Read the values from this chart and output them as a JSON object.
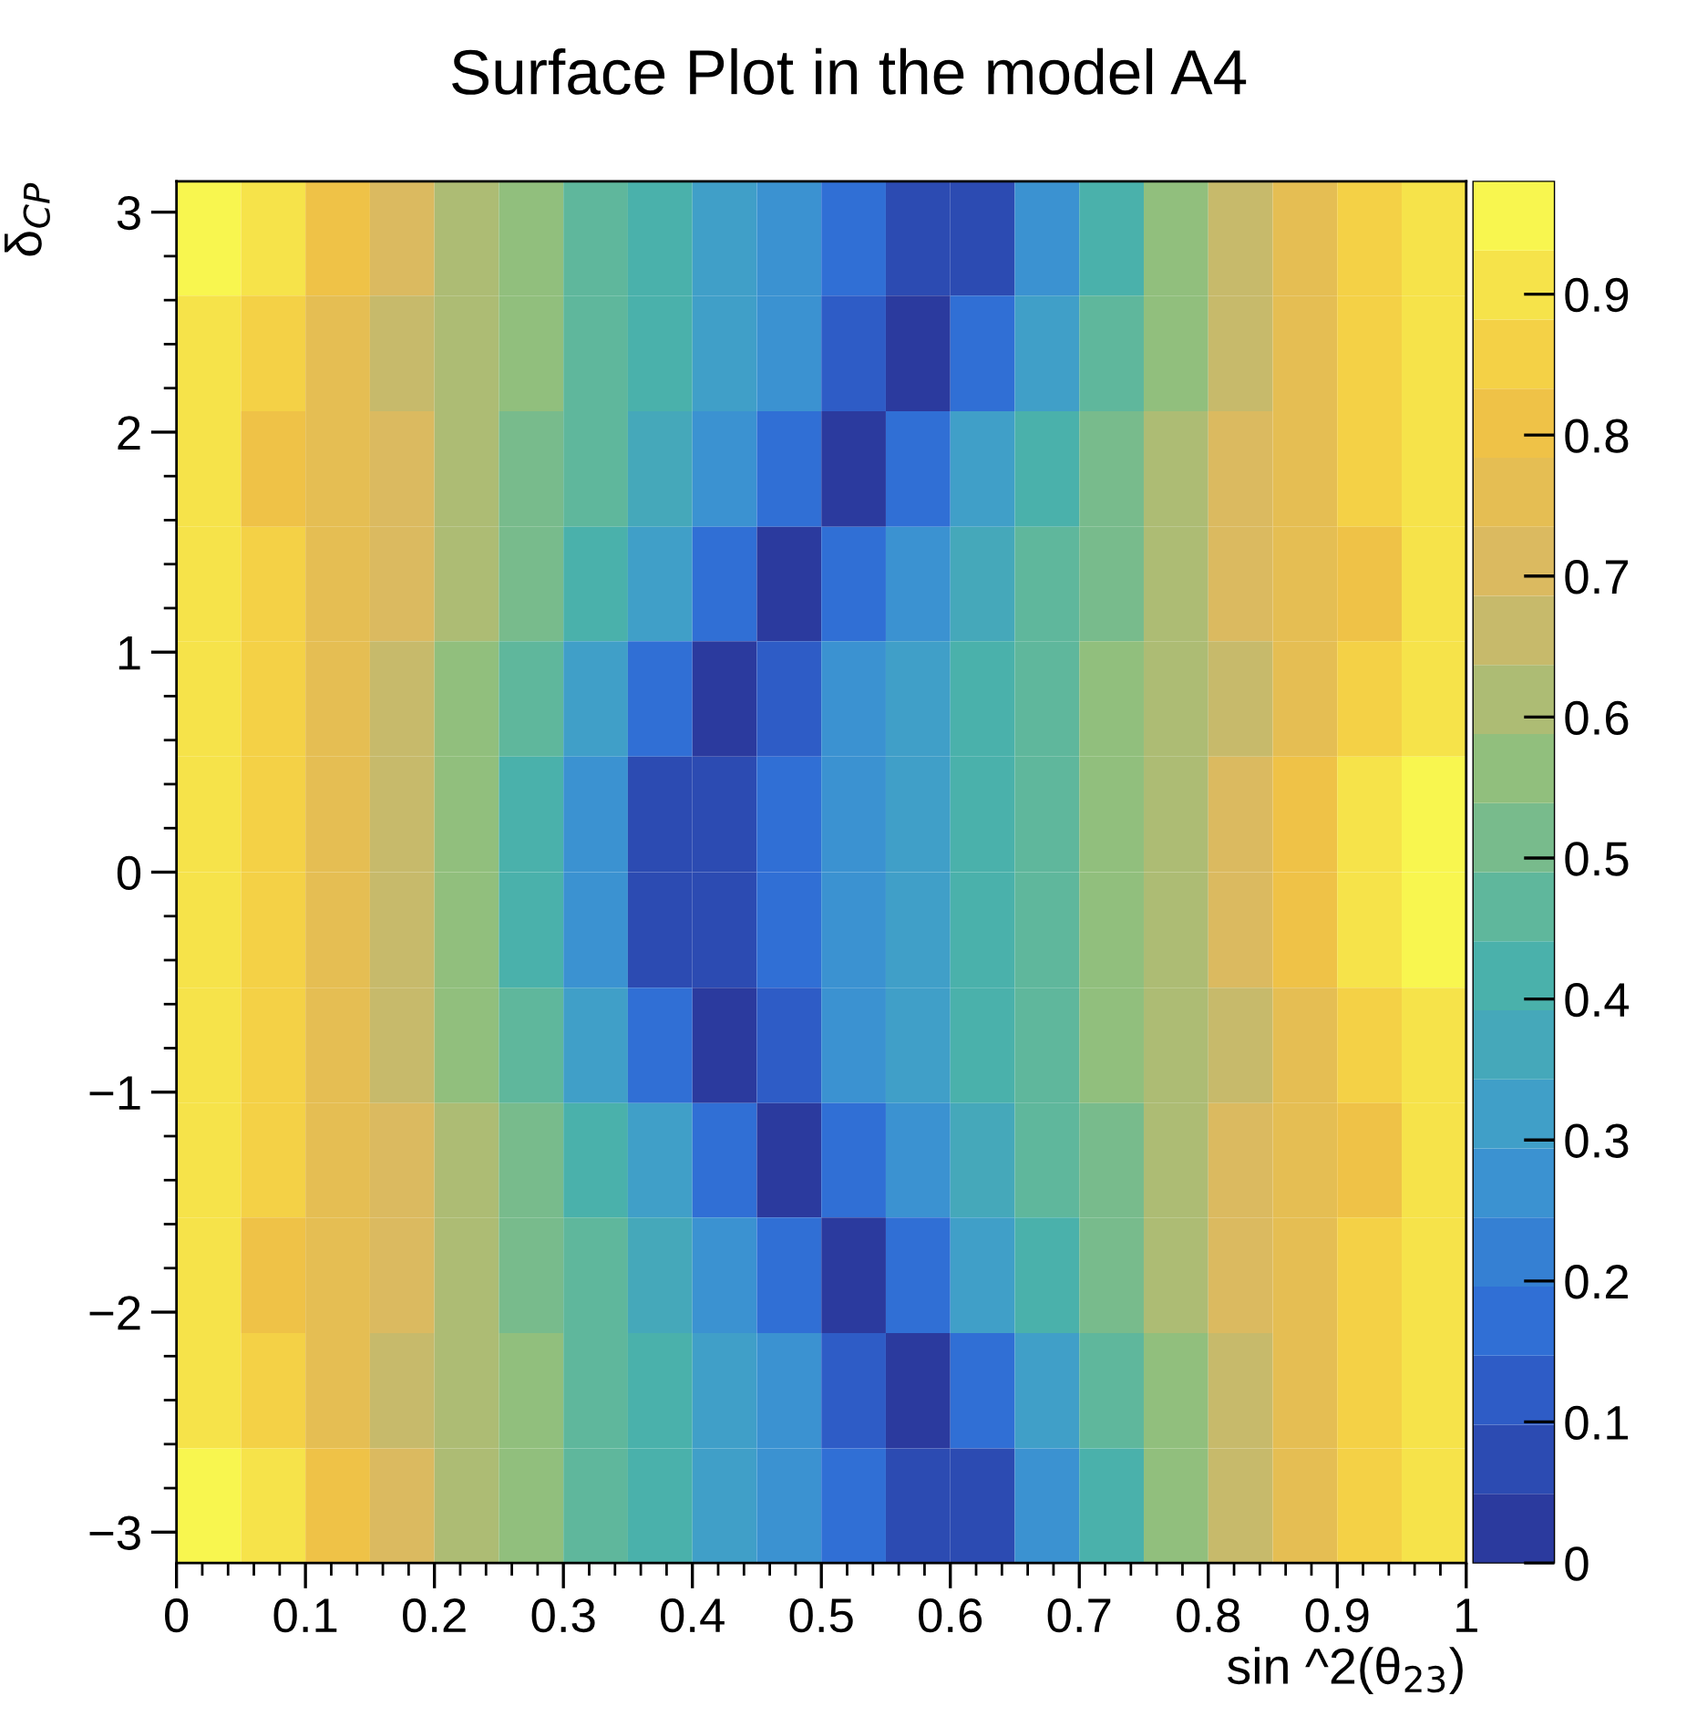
{
  "chart_data": {
    "type": "heatmap",
    "title": "Surface Plot in the model A4",
    "xlabel": "sin ^2(θ$_{23}$)",
    "ylabel": "δ$_{CP}$",
    "x": [
      0.025,
      0.075,
      0.125,
      0.175,
      0.225,
      0.275,
      0.325,
      0.375,
      0.425,
      0.475,
      0.525,
      0.575,
      0.625,
      0.675,
      0.725,
      0.775,
      0.825,
      0.875,
      0.925,
      0.975
    ],
    "y": [
      2.88,
      2.36,
      1.83,
      1.31,
      0.79,
      0.26,
      -0.26,
      -0.79,
      -1.31,
      -1.83,
      -2.36,
      -2.88
    ],
    "cells": [
      [
        0.95,
        0.89,
        0.8,
        0.7,
        0.61,
        0.54,
        0.47,
        0.4,
        0.34,
        0.28,
        0.19,
        0.06,
        0.09,
        0.27,
        0.42,
        0.54,
        0.65,
        0.75,
        0.84,
        0.92
      ],
      [
        0.92,
        0.86,
        0.78,
        0.68,
        0.61,
        0.54,
        0.46,
        0.4,
        0.33,
        0.25,
        0.11,
        0.01,
        0.19,
        0.34,
        0.46,
        0.57,
        0.67,
        0.76,
        0.84,
        0.91
      ],
      [
        0.9,
        0.83,
        0.76,
        0.69,
        0.62,
        0.53,
        0.45,
        0.38,
        0.29,
        0.15,
        0.01,
        0.16,
        0.31,
        0.41,
        0.52,
        0.6,
        0.69,
        0.76,
        0.84,
        0.89
      ],
      [
        0.89,
        0.84,
        0.76,
        0.69,
        0.6,
        0.52,
        0.41,
        0.31,
        0.16,
        0.01,
        0.15,
        0.29,
        0.38,
        0.45,
        0.53,
        0.62,
        0.69,
        0.76,
        0.83,
        0.9
      ],
      [
        0.91,
        0.84,
        0.76,
        0.67,
        0.57,
        0.46,
        0.34,
        0.19,
        0.01,
        0.11,
        0.25,
        0.33,
        0.4,
        0.46,
        0.54,
        0.61,
        0.68,
        0.78,
        0.86,
        0.92
      ],
      [
        0.92,
        0.84,
        0.75,
        0.65,
        0.54,
        0.42,
        0.27,
        0.09,
        0.06,
        0.19,
        0.28,
        0.34,
        0.4,
        0.47,
        0.54,
        0.61,
        0.7,
        0.8,
        0.89,
        0.95
      ],
      [
        0.92,
        0.84,
        0.75,
        0.65,
        0.54,
        0.42,
        0.27,
        0.09,
        0.06,
        0.19,
        0.28,
        0.34,
        0.4,
        0.47,
        0.54,
        0.61,
        0.7,
        0.8,
        0.89,
        0.95
      ],
      [
        0.91,
        0.84,
        0.76,
        0.67,
        0.57,
        0.46,
        0.34,
        0.19,
        0.01,
        0.11,
        0.25,
        0.33,
        0.4,
        0.46,
        0.54,
        0.61,
        0.68,
        0.78,
        0.86,
        0.92
      ],
      [
        0.89,
        0.84,
        0.76,
        0.69,
        0.6,
        0.52,
        0.41,
        0.31,
        0.16,
        0.01,
        0.15,
        0.29,
        0.38,
        0.45,
        0.53,
        0.62,
        0.69,
        0.76,
        0.83,
        0.9
      ],
      [
        0.9,
        0.83,
        0.76,
        0.69,
        0.62,
        0.53,
        0.45,
        0.38,
        0.29,
        0.15,
        0.01,
        0.16,
        0.31,
        0.41,
        0.52,
        0.6,
        0.69,
        0.76,
        0.84,
        0.89
      ],
      [
        0.92,
        0.86,
        0.78,
        0.68,
        0.61,
        0.54,
        0.46,
        0.4,
        0.33,
        0.25,
        0.11,
        0.01,
        0.19,
        0.34,
        0.46,
        0.57,
        0.67,
        0.76,
        0.84,
        0.91
      ],
      [
        0.95,
        0.89,
        0.8,
        0.7,
        0.61,
        0.54,
        0.47,
        0.4,
        0.34,
        0.28,
        0.19,
        0.06,
        0.09,
        0.27,
        0.42,
        0.54,
        0.65,
        0.75,
        0.84,
        0.92
      ]
    ],
    "colors": [
      "#2b3a9e",
      "#2f6ad6",
      "#3d9ad0",
      "#4bb3a8",
      "#8ebf7e",
      "#d7b865",
      "#f2c443",
      "#f8f64f"
    ],
    "xlim": [
      0,
      1
    ],
    "ylim": [
      -3.14,
      3.14
    ],
    "xticks": [
      0,
      0.1,
      0.2,
      0.3,
      0.4,
      0.5,
      0.6,
      0.7,
      0.8,
      0.9,
      1
    ],
    "yticks": [
      -3,
      -2,
      -1,
      0,
      1,
      2,
      3
    ],
    "clim": [
      0,
      0.98
    ],
    "cticks": [
      0,
      0.1,
      0.2,
      0.3,
      0.4,
      0.5,
      0.6,
      0.7,
      0.8,
      0.9
    ],
    "grid": false
  }
}
